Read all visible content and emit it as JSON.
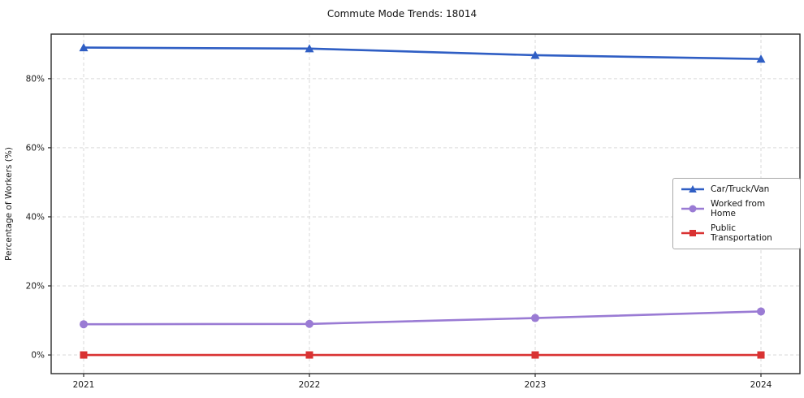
{
  "title": "Commute Mode Trends: 18014",
  "chart_data": {
    "type": "line",
    "title": "Commute Mode Trends: 18014",
    "xlabel": "",
    "ylabel": "Percentage of Workers (%)",
    "categories": [
      "2021",
      "2022",
      "2023",
      "2024"
    ],
    "series": [
      {
        "name": "Car/Truck/Van",
        "color": "#2f5ec4",
        "marker": "triangle",
        "values": [
          89.0,
          88.7,
          86.8,
          85.7
        ]
      },
      {
        "name": "Worked from Home",
        "color": "#9a7bd4",
        "marker": "circle",
        "values": [
          8.9,
          9.0,
          10.7,
          12.6
        ]
      },
      {
        "name": "Public Transportation",
        "color": "#d93232",
        "marker": "square",
        "values": [
          0.0,
          0.0,
          0.0,
          0.0
        ]
      }
    ],
    "y_ticks": [
      {
        "value": 0,
        "label": "0%"
      },
      {
        "value": 20,
        "label": "20%"
      },
      {
        "value": 40,
        "label": "40%"
      },
      {
        "value": 60,
        "label": "60%"
      },
      {
        "value": 80,
        "label": "80%"
      }
    ],
    "ylim": [
      -5.4,
      92.9
    ],
    "grid": "dashed",
    "legend_position": "center right",
    "colors": {
      "grid": "#d9d9d9",
      "axis": "#2b2b2b",
      "tick_text": "#1a1a1a"
    }
  }
}
